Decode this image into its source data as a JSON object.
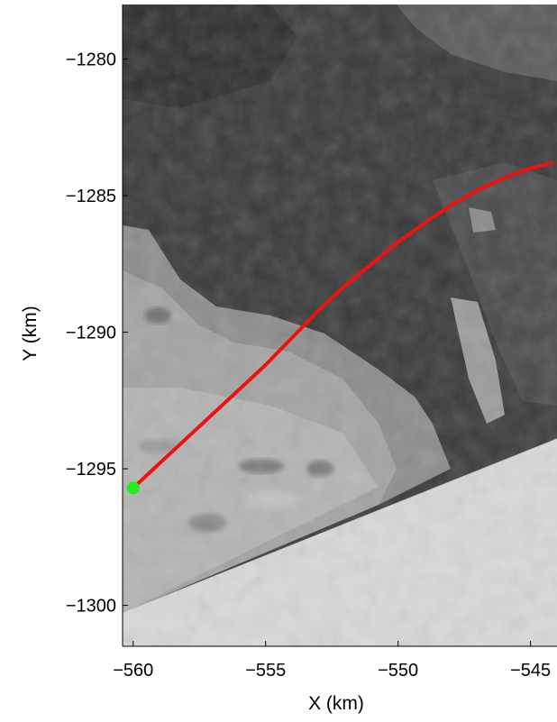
{
  "chart_data": {
    "type": "line",
    "background": "grayscale satellite image",
    "xlabel": "X (km)",
    "ylabel": "Y (km)",
    "xlim": [
      -560.4,
      -544.0
    ],
    "ylim": [
      -1301.5,
      -1278.0
    ],
    "x_ticks": [
      -560,
      -555,
      -550,
      -545
    ],
    "x_tick_labels": [
      "−560",
      "−555",
      "−550",
      "−545"
    ],
    "y_ticks": [
      -1280,
      -1285,
      -1290,
      -1295,
      -1300
    ],
    "y_tick_labels": [
      "−1280",
      "−1285",
      "−1290",
      "−1295",
      "−1300"
    ],
    "grid": false,
    "series": [
      {
        "color": "#ee1111",
        "x": [
          -560.0,
          -559.0,
          -558.0,
          -557.0,
          -556.0,
          -555.0,
          -554.0,
          -553.0,
          -552.0,
          -551.0,
          -550.0,
          -549.0,
          -548.0,
          -547.0,
          -546.0,
          -545.0,
          -544.2
        ],
        "y": [
          -1295.7,
          -1294.8,
          -1293.9,
          -1293.0,
          -1292.1,
          -1291.2,
          -1290.2,
          -1289.2,
          -1288.3,
          -1287.5,
          -1286.7,
          -1286.0,
          -1285.35,
          -1284.8,
          -1284.35,
          -1284.0,
          -1283.8
        ]
      }
    ],
    "markers": [
      {
        "x": -560.0,
        "y": -1295.7,
        "color": "#22ee22"
      }
    ]
  }
}
